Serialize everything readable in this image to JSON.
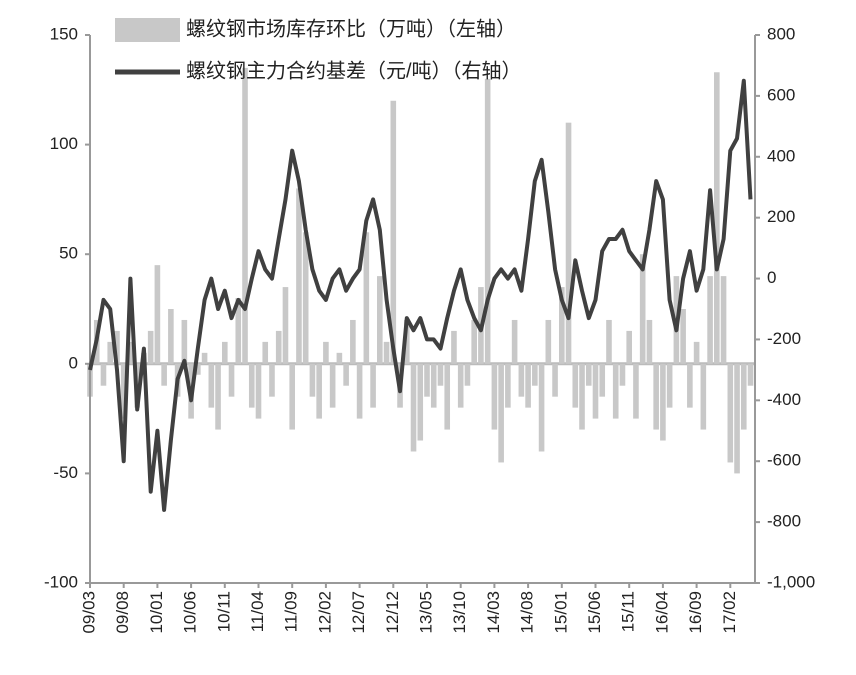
{
  "chart_data": {
    "type": "combo",
    "categories": [
      "09/03",
      null,
      null,
      null,
      null,
      "09/08",
      null,
      null,
      null,
      null,
      "10/01",
      null,
      null,
      null,
      null,
      "10/06",
      null,
      null,
      null,
      null,
      "10/11",
      null,
      null,
      null,
      null,
      "11/04",
      null,
      null,
      null,
      null,
      "11/09",
      null,
      null,
      null,
      null,
      "12/02",
      null,
      null,
      null,
      null,
      "12/07",
      null,
      null,
      null,
      null,
      "12/12",
      null,
      null,
      null,
      null,
      "13/05",
      null,
      null,
      null,
      null,
      "13/10",
      null,
      null,
      null,
      null,
      "14/03",
      null,
      null,
      null,
      null,
      "14/08",
      null,
      null,
      null,
      null,
      "15/01",
      null,
      null,
      null,
      null,
      "15/06",
      null,
      null,
      null,
      null,
      "15/11",
      null,
      null,
      null,
      null,
      "16/04",
      null,
      null,
      null,
      null,
      "16/09",
      null,
      null,
      null,
      null,
      "17/02",
      null,
      null,
      null
    ],
    "series": [
      {
        "name": "螺纹钢市场库存环比（万吨）（左轴）",
        "type": "bar",
        "color": "#c8c8c8",
        "values": [
          -15,
          20,
          -10,
          10,
          15,
          -25,
          10,
          -20,
          5,
          15,
          45,
          -10,
          25,
          -15,
          20,
          -25,
          -5,
          5,
          -20,
          -30,
          10,
          -15,
          30,
          135,
          -20,
          -25,
          10,
          -15,
          15,
          35,
          -30,
          80,
          60,
          -15,
          -25,
          10,
          -20,
          5,
          -10,
          20,
          -25,
          60,
          -20,
          40,
          10,
          120,
          -20,
          20,
          -40,
          -35,
          -15,
          -20,
          -10,
          -30,
          15,
          -20,
          -10,
          20,
          35,
          130,
          -30,
          -45,
          -20,
          20,
          -15,
          -20,
          -10,
          -40,
          20,
          -15,
          35,
          110,
          -20,
          -30,
          -10,
          -25,
          -15,
          20,
          -25,
          -10,
          15,
          -25,
          50,
          20,
          -30,
          -35,
          -20,
          40,
          25,
          -20,
          10,
          -30,
          40,
          133,
          40,
          -45,
          -50,
          -30,
          -10
        ]
      },
      {
        "name": "螺纹钢主力合约基差（元/吨）（右轴）",
        "type": "line",
        "axis": "y2",
        "color": "#404040",
        "values": [
          -300,
          -200,
          -70,
          -100,
          -300,
          -600,
          0,
          -430,
          -230,
          -700,
          -500,
          -760,
          -530,
          -330,
          -270,
          -400,
          -230,
          -70,
          0,
          -100,
          -40,
          -130,
          -70,
          -100,
          0,
          90,
          30,
          0,
          130,
          260,
          420,
          320,
          160,
          30,
          -40,
          -70,
          0,
          30,
          -40,
          0,
          30,
          190,
          260,
          160,
          -70,
          -230,
          -370,
          -130,
          -170,
          -130,
          -200,
          -200,
          -230,
          -130,
          -40,
          30,
          -70,
          -130,
          -170,
          -70,
          0,
          30,
          0,
          30,
          -40,
          130,
          320,
          390,
          220,
          30,
          -70,
          -130,
          60,
          -40,
          -130,
          -70,
          90,
          130,
          130,
          160,
          90,
          60,
          30,
          160,
          320,
          260,
          -70,
          -170,
          0,
          90,
          -40,
          30,
          290,
          30,
          130,
          420,
          460,
          650,
          260
        ]
      }
    ],
    "ylim": [
      -100,
      150
    ],
    "yticks": [
      -100,
      -50,
      0,
      50,
      100,
      150
    ],
    "y2lim": [
      -1000,
      800
    ],
    "y2ticks": [
      {
        "value": -1000,
        "label": "-1,000"
      },
      -800,
      -600,
      -400,
      -200,
      0,
      200,
      400,
      600,
      800
    ],
    "grid": false
  }
}
